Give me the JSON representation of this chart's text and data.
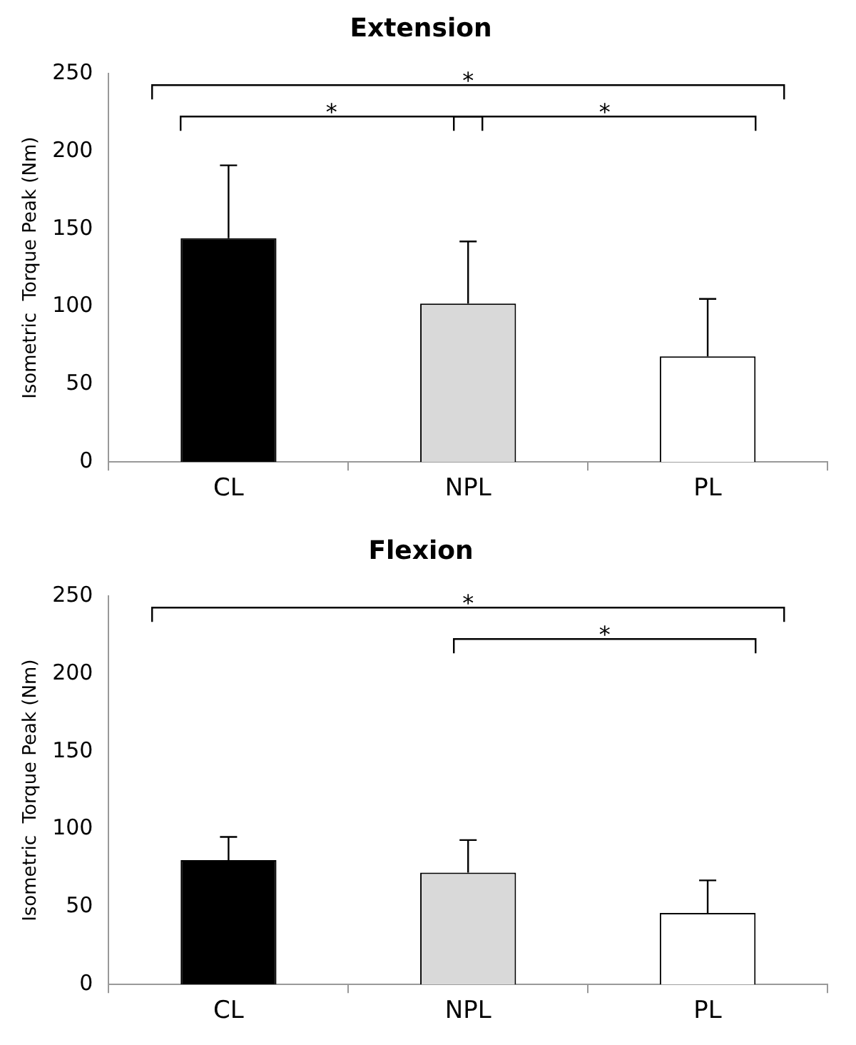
{
  "chart_data": [
    {
      "type": "bar",
      "title": "Extension",
      "ylabel": "Isometric  Torque Peak (Nm)",
      "categories": [
        "CL",
        "NPL",
        "PL"
      ],
      "values": [
        144,
        102,
        68
      ],
      "errors": [
        47,
        40,
        37
      ],
      "colors": [
        "#000000",
        "#d9d9d9",
        "#ffffff"
      ],
      "ylim": [
        0,
        250
      ],
      "yticks": [
        0,
        50,
        100,
        150,
        200,
        250
      ],
      "grid": false,
      "legend": false,
      "annotations": [
        "*",
        "*",
        "*"
      ]
    },
    {
      "type": "bar",
      "title": "Flexion",
      "ylabel": "Isometric  Torque Peak (Nm)",
      "categories": [
        "CL",
        "NPL",
        "PL"
      ],
      "values": [
        80,
        72,
        46
      ],
      "errors": [
        15,
        21,
        21
      ],
      "colors": [
        "#000000",
        "#d9d9d9",
        "#ffffff"
      ],
      "ylim": [
        0,
        250
      ],
      "yticks": [
        0,
        50,
        100,
        150,
        200,
        250
      ],
      "grid": false,
      "legend": false,
      "annotations": [
        "*",
        "*"
      ]
    }
  ]
}
